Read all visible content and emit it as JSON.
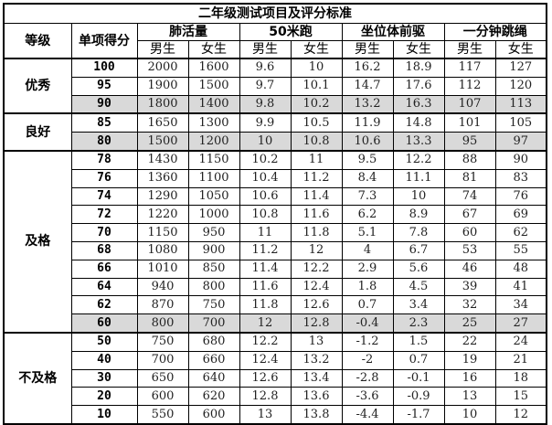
{
  "title": "二年级测试项目及评分标准",
  "headers": {
    "level": "等级",
    "score": "单项得分",
    "events": [
      "肺活量",
      "50米跑",
      "坐位体前驱",
      "一分钟跳绳"
    ],
    "male": "男生",
    "female": "女生"
  },
  "colors": {
    "highlight_row": "#d9d9d9"
  },
  "groups": [
    {
      "level": "优秀",
      "rows": [
        {
          "score": "100",
          "v": [
            "2000",
            "1600",
            "9.6",
            "10",
            "16.2",
            "18.9",
            "117",
            "127"
          ]
        },
        {
          "score": "95",
          "v": [
            "1900",
            "1500",
            "9.7",
            "10.1",
            "14.7",
            "17.6",
            "112",
            "120"
          ]
        },
        {
          "score": "90",
          "v": [
            "1800",
            "1400",
            "9.8",
            "10.2",
            "13.2",
            "16.3",
            "107",
            "113"
          ],
          "highlight": true
        }
      ]
    },
    {
      "level": "良好",
      "rows": [
        {
          "score": "85",
          "v": [
            "1650",
            "1300",
            "9.9",
            "10.5",
            "11.9",
            "14.8",
            "101",
            "105"
          ]
        },
        {
          "score": "80",
          "v": [
            "1500",
            "1200",
            "10",
            "10.8",
            "10.6",
            "13.3",
            "95",
            "97"
          ],
          "highlight": true
        }
      ]
    },
    {
      "level": "及格",
      "rows": [
        {
          "score": "78",
          "v": [
            "1430",
            "1150",
            "10.2",
            "11",
            "9.5",
            "12.2",
            "88",
            "90"
          ]
        },
        {
          "score": "76",
          "v": [
            "1360",
            "1100",
            "10.4",
            "11.2",
            "8.4",
            "11.1",
            "81",
            "83"
          ]
        },
        {
          "score": "74",
          "v": [
            "1290",
            "1050",
            "10.6",
            "11.4",
            "7.3",
            "10",
            "74",
            "76"
          ]
        },
        {
          "score": "72",
          "v": [
            "1220",
            "1000",
            "10.8",
            "11.6",
            "6.2",
            "8.9",
            "67",
            "69"
          ]
        },
        {
          "score": "70",
          "v": [
            "1150",
            "950",
            "11",
            "11.8",
            "5.1",
            "7.8",
            "60",
            "62"
          ]
        },
        {
          "score": "68",
          "v": [
            "1080",
            "900",
            "11.2",
            "12",
            "4",
            "6.7",
            "53",
            "55"
          ]
        },
        {
          "score": "66",
          "v": [
            "1010",
            "850",
            "11.4",
            "12.2",
            "2.9",
            "5.6",
            "46",
            "48"
          ]
        },
        {
          "score": "64",
          "v": [
            "940",
            "800",
            "11.6",
            "12.4",
            "1.8",
            "4.5",
            "39",
            "41"
          ]
        },
        {
          "score": "62",
          "v": [
            "870",
            "750",
            "11.8",
            "12.6",
            "0.7",
            "3.4",
            "32",
            "34"
          ]
        },
        {
          "score": "60",
          "v": [
            "800",
            "700",
            "12",
            "12.8",
            "-0.4",
            "2.3",
            "25",
            "27"
          ],
          "highlight": true
        }
      ]
    },
    {
      "level": "不及格",
      "rows": [
        {
          "score": "50",
          "v": [
            "750",
            "680",
            "12.2",
            "13",
            "-1.2",
            "1.5",
            "22",
            "24"
          ]
        },
        {
          "score": "40",
          "v": [
            "700",
            "660",
            "12.4",
            "13.2",
            "-2",
            "0.7",
            "19",
            "21"
          ]
        },
        {
          "score": "30",
          "v": [
            "650",
            "640",
            "12.6",
            "13.4",
            "-2.8",
            "-0.1",
            "16",
            "18"
          ]
        },
        {
          "score": "20",
          "v": [
            "600",
            "620",
            "12.8",
            "13.6",
            "-3.6",
            "-0.9",
            "13",
            "15"
          ]
        },
        {
          "score": "10",
          "v": [
            "550",
            "600",
            "13",
            "13.8",
            "-4.4",
            "-1.7",
            "10",
            "12"
          ]
        }
      ]
    }
  ]
}
